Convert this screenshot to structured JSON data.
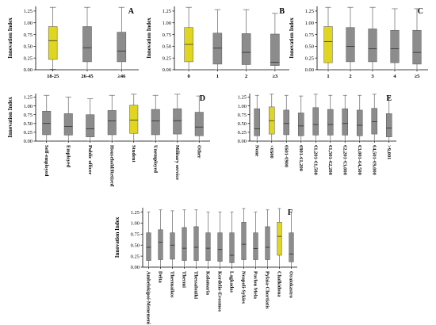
{
  "colors": {
    "highlight": "#e0d61f",
    "box": "#8c8c8c",
    "axis": "#000000",
    "whisker": "#666666"
  },
  "chart_data": [
    {
      "id": "A",
      "panel_label": "A",
      "type": "boxplot",
      "ylabel": "Innovation Index",
      "ylim": [
        0,
        1.35
      ],
      "yticks": [
        "0.00",
        "0.25",
        "0.50",
        "0.75",
        "1.00",
        "1.25"
      ],
      "categories": [
        "18-25",
        "26-45",
        "≥46"
      ],
      "highlight": [
        0
      ],
      "boxes": [
        {
          "min": 0.01,
          "q1": 0.22,
          "median": 0.62,
          "q3": 0.92,
          "max": 1.33
        },
        {
          "min": 0.0,
          "q1": 0.17,
          "median": 0.47,
          "q3": 0.92,
          "max": 1.33
        },
        {
          "min": 0.0,
          "q1": 0.17,
          "median": 0.4,
          "q3": 0.8,
          "max": 1.33
        }
      ]
    },
    {
      "id": "B",
      "panel_label": "B",
      "type": "boxplot",
      "ylabel": "Innovation Index",
      "ylim": [
        0,
        1.35
      ],
      "yticks": [
        "0.00",
        "0.25",
        "0.50",
        "0.75",
        "1.00",
        "1.25"
      ],
      "categories": [
        "0",
        "1",
        "2",
        "≥3"
      ],
      "highlight": [
        0
      ],
      "boxes": [
        {
          "min": 0.0,
          "q1": 0.17,
          "median": 0.54,
          "q3": 0.9,
          "max": 1.33
        },
        {
          "min": 0.0,
          "q1": 0.12,
          "median": 0.46,
          "q3": 0.78,
          "max": 1.28
        },
        {
          "min": 0.0,
          "q1": 0.11,
          "median": 0.37,
          "q3": 0.77,
          "max": 1.28
        },
        {
          "min": 0.0,
          "q1": 0.09,
          "median": 0.16,
          "q3": 0.76,
          "max": 1.2
        }
      ]
    },
    {
      "id": "C",
      "panel_label": "C",
      "type": "boxplot",
      "ylabel": "Innovation Index",
      "ylim": [
        0,
        1.35
      ],
      "yticks": [
        "0.00",
        "0.25",
        "0.50",
        "0.75",
        "1.00",
        "1.25"
      ],
      "categories": [
        "1",
        "2",
        "3",
        "4",
        "≥5"
      ],
      "highlight": [
        0
      ],
      "boxes": [
        {
          "min": 0.0,
          "q1": 0.15,
          "median": 0.6,
          "q3": 0.92,
          "max": 1.33
        },
        {
          "min": 0.0,
          "q1": 0.17,
          "median": 0.5,
          "q3": 0.9,
          "max": 1.33
        },
        {
          "min": 0.0,
          "q1": 0.17,
          "median": 0.45,
          "q3": 0.87,
          "max": 1.33
        },
        {
          "min": 0.0,
          "q1": 0.15,
          "median": 0.45,
          "q3": 0.84,
          "max": 1.3
        },
        {
          "min": 0.0,
          "q1": 0.12,
          "median": 0.37,
          "q3": 0.84,
          "max": 1.3
        }
      ]
    },
    {
      "id": "D",
      "panel_label": "D",
      "type": "boxplot",
      "ylabel": "Innovation Index",
      "ylim": [
        0,
        1.35
      ],
      "yticks": [
        "0.00",
        "0.25",
        "0.50",
        "0.75",
        "1.00",
        "1.25"
      ],
      "categories": [
        "Self-employed",
        "Employed",
        "Public officer",
        "Household/Retired",
        "Student",
        "Unemployed",
        "Military service",
        "Other"
      ],
      "highlight": [
        4
      ],
      "boxes": [
        {
          "min": 0.0,
          "q1": 0.18,
          "median": 0.5,
          "q3": 0.85,
          "max": 1.3
        },
        {
          "min": 0.0,
          "q1": 0.17,
          "median": 0.42,
          "q3": 0.78,
          "max": 1.25
        },
        {
          "min": 0.0,
          "q1": 0.12,
          "median": 0.35,
          "q3": 0.75,
          "max": 1.2
        },
        {
          "min": 0.0,
          "q1": 0.18,
          "median": 0.57,
          "q3": 0.87,
          "max": 1.3
        },
        {
          "min": 0.0,
          "q1": 0.22,
          "median": 0.6,
          "q3": 1.02,
          "max": 1.33
        },
        {
          "min": 0.0,
          "q1": 0.18,
          "median": 0.57,
          "q3": 0.9,
          "max": 1.3
        },
        {
          "min": 0.0,
          "q1": 0.2,
          "median": 0.58,
          "q3": 0.92,
          "max": 1.33
        },
        {
          "min": 0.0,
          "q1": 0.15,
          "median": 0.4,
          "q3": 0.82,
          "max": 1.28
        }
      ]
    },
    {
      "id": "E",
      "panel_label": "E",
      "type": "boxplot",
      "ylabel": "",
      "ylim": [
        0,
        1.35
      ],
      "yticks": [
        "0.00",
        "0.25",
        "0.50",
        "0.75",
        "1.00",
        "1.25"
      ],
      "categories": [
        "None",
        "<€600",
        "€601-€900",
        "€901-€1,200",
        "€1,201-€1,500",
        "€1,501-€2,200",
        "€2,201-€3,000",
        "€3,001-€4,500",
        "€4,501-€9,000",
        ">9,001"
      ],
      "highlight": [
        1
      ],
      "boxes": [
        {
          "min": 0.0,
          "q1": 0.15,
          "median": 0.35,
          "q3": 0.92,
          "max": 1.3
        },
        {
          "min": 0.0,
          "q1": 0.2,
          "median": 0.58,
          "q3": 0.97,
          "max": 1.33
        },
        {
          "min": 0.0,
          "q1": 0.18,
          "median": 0.5,
          "q3": 0.88,
          "max": 1.3
        },
        {
          "min": 0.0,
          "q1": 0.15,
          "median": 0.43,
          "q3": 0.8,
          "max": 1.28
        },
        {
          "min": 0.0,
          "q1": 0.17,
          "median": 0.47,
          "q3": 0.95,
          "max": 1.33
        },
        {
          "min": 0.0,
          "q1": 0.17,
          "median": 0.47,
          "q3": 0.9,
          "max": 1.3
        },
        {
          "min": 0.0,
          "q1": 0.17,
          "median": 0.5,
          "q3": 0.92,
          "max": 1.3
        },
        {
          "min": 0.0,
          "q1": 0.15,
          "median": 0.45,
          "q3": 0.88,
          "max": 1.3
        },
        {
          "min": 0.0,
          "q1": 0.2,
          "median": 0.55,
          "q3": 0.93,
          "max": 1.33
        },
        {
          "min": 0.0,
          "q1": 0.12,
          "median": 0.37,
          "q3": 0.78,
          "max": 1.25
        }
      ]
    },
    {
      "id": "F",
      "panel_label": "F",
      "type": "boxplot",
      "ylabel": "Innovation Index",
      "ylim": [
        0,
        1.35
      ],
      "yticks": [
        "0.00",
        "0.25",
        "0.50",
        "0.75",
        "1.00",
        "1.25"
      ],
      "categories": [
        "Ambelokipoi-Menemeni",
        "Delta",
        "Thermaikos",
        "Thermi",
        "Thessaloniki",
        "Kalamaria",
        "Kordelio-Evosmos",
        "Lagkadas",
        "Neapoli-Sykies",
        "Pavlou Mela",
        "Pylaia-Chortiatis",
        "Chalkidona",
        "Oraiokastro"
      ],
      "highlight": [
        11
      ],
      "boxes": [
        {
          "min": 0.0,
          "q1": 0.15,
          "median": 0.45,
          "q3": 0.78,
          "max": 1.25
        },
        {
          "min": 0.0,
          "q1": 0.17,
          "median": 0.57,
          "q3": 0.85,
          "max": 1.3
        },
        {
          "min": 0.0,
          "q1": 0.18,
          "median": 0.5,
          "q3": 0.78,
          "max": 1.28
        },
        {
          "min": 0.0,
          "q1": 0.15,
          "median": 0.43,
          "q3": 0.9,
          "max": 1.3
        },
        {
          "min": 0.0,
          "q1": 0.15,
          "median": 0.45,
          "q3": 0.92,
          "max": 1.3
        },
        {
          "min": 0.0,
          "q1": 0.15,
          "median": 0.43,
          "q3": 0.78,
          "max": 1.25
        },
        {
          "min": 0.0,
          "q1": 0.13,
          "median": 0.4,
          "q3": 0.78,
          "max": 1.25
        },
        {
          "min": 0.0,
          "q1": 0.1,
          "median": 0.27,
          "q3": 0.78,
          "max": 1.25
        },
        {
          "min": 0.0,
          "q1": 0.17,
          "median": 0.52,
          "q3": 1.02,
          "max": 1.33
        },
        {
          "min": 0.0,
          "q1": 0.17,
          "median": 0.42,
          "q3": 0.78,
          "max": 1.25
        },
        {
          "min": 0.0,
          "q1": 0.17,
          "median": 0.45,
          "q3": 0.92,
          "max": 1.3
        },
        {
          "min": 0.0,
          "q1": 0.27,
          "median": 0.7,
          "q3": 1.02,
          "max": 1.33
        },
        {
          "min": 0.0,
          "q1": 0.12,
          "median": 0.3,
          "q3": 0.78,
          "max": 1.25
        }
      ]
    }
  ]
}
